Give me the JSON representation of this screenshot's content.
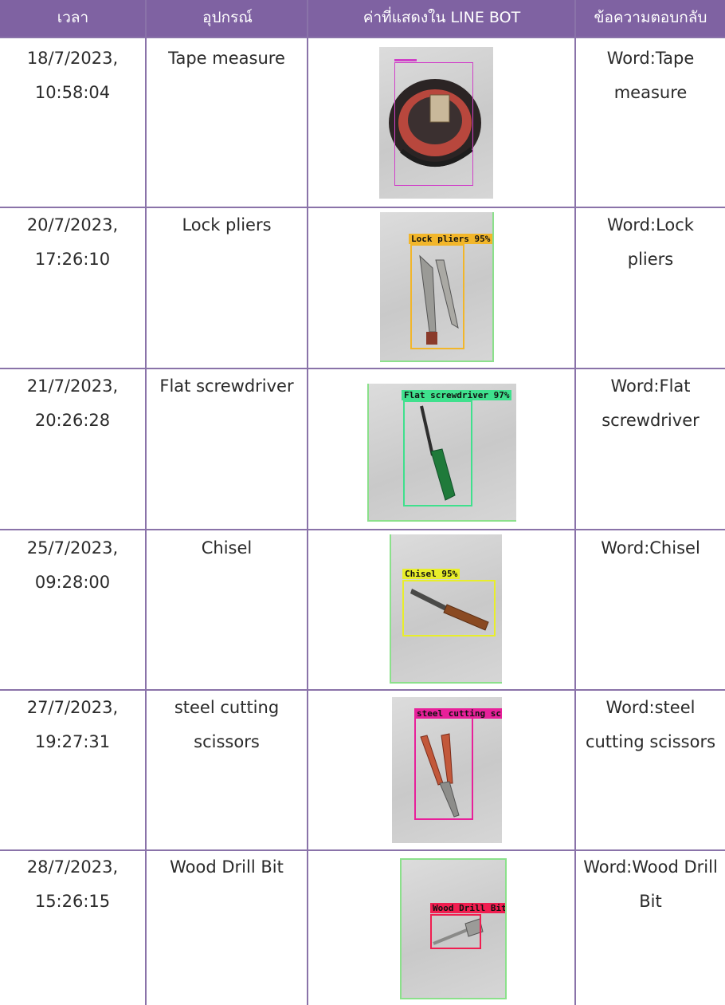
{
  "header": {
    "time": "เวลา",
    "device": "อุปกรณ์",
    "line_bot": "ค่าที่แสดงใน LINE BOT",
    "reply": "ข้อความตอบกลับ"
  },
  "colors": {
    "header_bg": "#7f62a2",
    "grid_line": "#8a73a9"
  },
  "rows": [
    {
      "date": "18/7/2023,",
      "time": "10:58:04",
      "device": "Tape measure",
      "device_line2": "",
      "detection_label": "",
      "box_color": "#d040c8",
      "reply_line1": "Word:Tape",
      "reply_line2": "measure"
    },
    {
      "date": "20/7/2023,",
      "time": "17:26:10",
      "device": "Lock pliers",
      "device_line2": "",
      "detection_label": "Lock pliers 95%",
      "box_color": "#f2b62a",
      "reply_line1": "Word:Lock",
      "reply_line2": "pliers"
    },
    {
      "date": "21/7/2023,",
      "time": "20:26:28",
      "device": "Flat screwdriver",
      "device_line2": "",
      "detection_label": "Flat screwdriver 97%",
      "box_color": "#3fe08d",
      "reply_line1": "Word:Flat",
      "reply_line2": "screwdriver"
    },
    {
      "date": "25/7/2023,",
      "time": "09:28:00",
      "device": "Chisel",
      "device_line2": "",
      "detection_label": "Chisel 95%",
      "box_color": "#e8ee2a",
      "reply_line1": "Word:Chisel",
      "reply_line2": ""
    },
    {
      "date": "27/7/2023,",
      "time": "19:27:31",
      "device": "steel cutting",
      "device_line2": "scissors",
      "detection_label": "steel cutting sc",
      "box_color": "#e8209a",
      "reply_line1": "Word:steel",
      "reply_line2": "cutting scissors"
    },
    {
      "date": "28/7/2023,",
      "time": "15:26:15",
      "device": "Wood Drill Bit",
      "device_line2": "",
      "detection_label": "Wood Drill Bit",
      "box_color": "#f01e50",
      "reply_line1": "Word:Wood Drill",
      "reply_line2": "Bit"
    }
  ]
}
